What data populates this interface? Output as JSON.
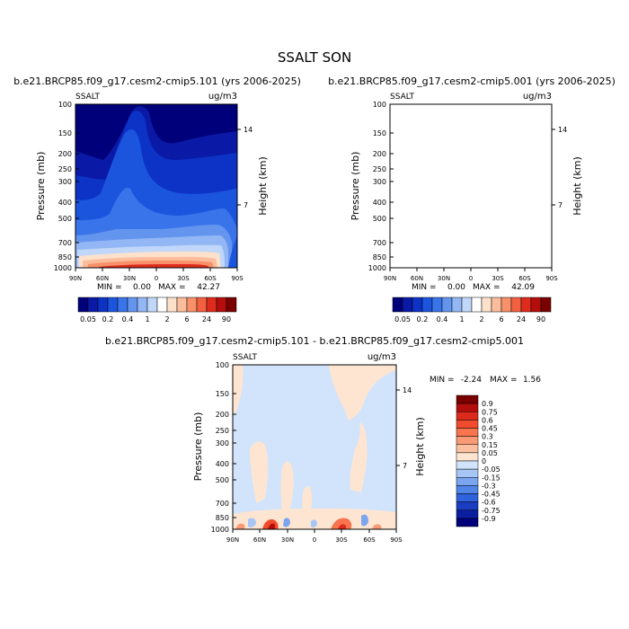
{
  "title": "SSALT SON",
  "panels": [
    {
      "case_label": "b.e21.BRCP85.f09_g17.cesm2-cmip5.101 (yrs 2006-2025)",
      "var_label": "SSALT",
      "units_label": "ug/m3",
      "min_label": "MIN =",
      "min_value": "0.00",
      "max_label": "MAX =",
      "max_value": "42.27"
    },
    {
      "case_label": "b.e21.BRCP85.f09_g17.cesm2-cmip5.001 (yrs 2006-2025)",
      "var_label": "SSALT",
      "units_label": "ug/m3",
      "min_label": "MIN =",
      "min_value": "0.00",
      "max_label": "MAX =",
      "max_value": "42.09"
    },
    {
      "case_label": "b.e21.BRCP85.f09_g17.cesm2-cmip5.101 - b.e21.BRCP85.f09_g17.cesm2-cmip5.001",
      "var_label": "SSALT",
      "units_label": "ug/m3",
      "min_label": "MIN =",
      "min_value": "-2.24",
      "max_label": "MAX =",
      "max_value": "1.56"
    }
  ],
  "axes": {
    "ylabel": "Pressure (mb)",
    "ylabel_right": "Height (km)",
    "pressure_ticks": [
      "100",
      "150",
      "200",
      "250",
      "300",
      "400",
      "500",
      "700",
      "850",
      "1000"
    ],
    "lat_ticks": [
      "90N",
      "60N",
      "30N",
      "0",
      "30S",
      "60S",
      "90S"
    ],
    "height_ticks": [
      "14",
      "7"
    ]
  },
  "colorbar_main": {
    "labels": [
      "0.05",
      "0.2",
      "0.4",
      "1",
      "2",
      "6",
      "24",
      "90"
    ],
    "colors": [
      "#00007a",
      "#0a1aa6",
      "#0c33c6",
      "#1c55dd",
      "#3a74ea",
      "#6495ee",
      "#93b7f4",
      "#c1d7fa",
      "#ffffff",
      "#fde1cb",
      "#fbbd9b",
      "#f8906a",
      "#f26040",
      "#de2b1d",
      "#b40e0c",
      "#7a0000"
    ]
  },
  "colorbar_diff": {
    "labels": [
      "0.9",
      "0.75",
      "0.6",
      "0.45",
      "0.3",
      "0.15",
      "0.05",
      "0",
      "-0.05",
      "-0.15",
      "-0.3",
      "-0.45",
      "-0.6",
      "-0.75",
      "-0.9"
    ],
    "colors": [
      "#7a0000",
      "#b40e0c",
      "#dc2a1c",
      "#ef4b2c",
      "#f7744f",
      "#f99a76",
      "#fbbfa0",
      "#fde5d2",
      "#d2e4fb",
      "#a6c6f5",
      "#7ba6ef",
      "#5186e8",
      "#2f62dc",
      "#1a3dc2",
      "#0a1fa0",
      "#00007a"
    ]
  },
  "chart_data": [
    {
      "type": "heatmap",
      "title": "b.e21.BRCP85.f09_g17.cesm2-cmip5.101 (yrs 2006-2025)",
      "x": [
        -90,
        90
      ],
      "ylim": [
        1000,
        100
      ],
      "levels": [
        0.05,
        0.2,
        0.4,
        1,
        2,
        6,
        24,
        90
      ],
      "min": 0.0,
      "max": 42.27
    },
    {
      "type": "heatmap",
      "title": "b.e21.BRCP85.f09_g17.cesm2-cmip5.001 (yrs 2006-2025)",
      "x": [
        -90,
        90
      ],
      "ylim": [
        1000,
        100
      ],
      "levels": [
        0.05,
        0.2,
        0.4,
        1,
        2,
        6,
        24,
        90
      ],
      "min": 0.0,
      "max": 42.09
    },
    {
      "type": "heatmap",
      "title": "b.e21.BRCP85.f09_g17.cesm2-cmip5.101 - b.e21.BRCP85.f09_g17.cesm2-cmip5.001",
      "x": [
        -90,
        90
      ],
      "ylim": [
        1000,
        100
      ],
      "levels": [
        -0.9,
        -0.75,
        -0.6,
        -0.45,
        -0.3,
        -0.15,
        -0.05,
        0,
        0.05,
        0.15,
        0.3,
        0.45,
        0.6,
        0.75,
        0.9
      ],
      "min": -2.24,
      "max": 1.56
    }
  ]
}
